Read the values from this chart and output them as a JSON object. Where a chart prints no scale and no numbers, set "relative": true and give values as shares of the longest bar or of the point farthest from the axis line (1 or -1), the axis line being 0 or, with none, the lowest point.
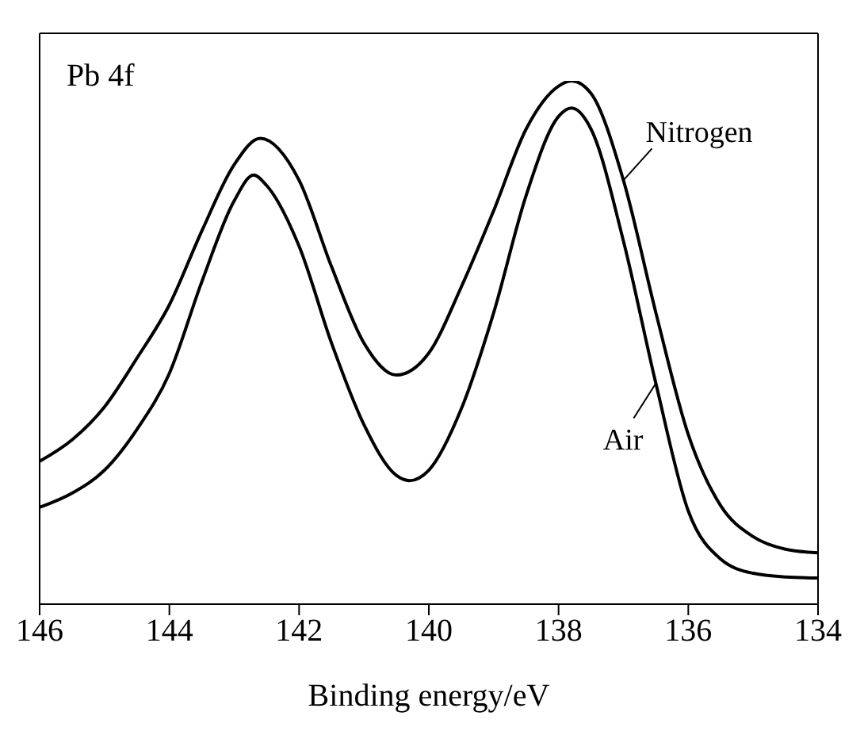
{
  "chart_data": {
    "type": "line",
    "title": "Pb 4f",
    "xlabel": "Binding energy/eV",
    "relative": true,
    "xlim": [
      146,
      134
    ],
    "xticks": [
      146,
      144,
      142,
      140,
      138,
      136,
      134
    ],
    "marker": "none",
    "line_style": "solid",
    "x": [
      146,
      145.5,
      145,
      144.5,
      144,
      143.5,
      143,
      142.6,
      142,
      141.5,
      141,
      140.5,
      140,
      139.5,
      139,
      138.5,
      138,
      137.8,
      137.5,
      137,
      136.5,
      136,
      135.5,
      135,
      134.5,
      134
    ],
    "series": [
      {
        "name": "Nitrogen",
        "color": "#000000",
        "values": [
          0.273,
          0.314,
          0.377,
          0.47,
          0.572,
          0.713,
          0.84,
          0.89,
          0.81,
          0.645,
          0.499,
          0.438,
          0.48,
          0.606,
          0.752,
          0.908,
          0.99,
          1,
          0.976,
          0.81,
          0.557,
          0.324,
          0.188,
          0.129,
          0.105,
          0.098
        ]
      },
      {
        "name": "Air",
        "color": "#000000",
        "x": [
          146,
          145.5,
          145,
          144.5,
          144,
          143.5,
          143,
          142.7,
          142.5,
          142,
          141.5,
          141,
          140.5,
          140.3,
          140,
          139.5,
          139,
          138.5,
          138,
          137.8,
          137.5,
          137,
          136.5,
          136,
          135.5,
          135,
          134.5,
          134
        ],
        "values": [
          0.185,
          0.212,
          0.256,
          0.334,
          0.441,
          0.616,
          0.771,
          0.82,
          0.8,
          0.684,
          0.499,
          0.343,
          0.246,
          0.236,
          0.256,
          0.373,
          0.557,
          0.781,
          0.932,
          0.948,
          0.908,
          0.694,
          0.422,
          0.178,
          0.086,
          0.059,
          0.052,
          0.05
        ]
      }
    ]
  }
}
